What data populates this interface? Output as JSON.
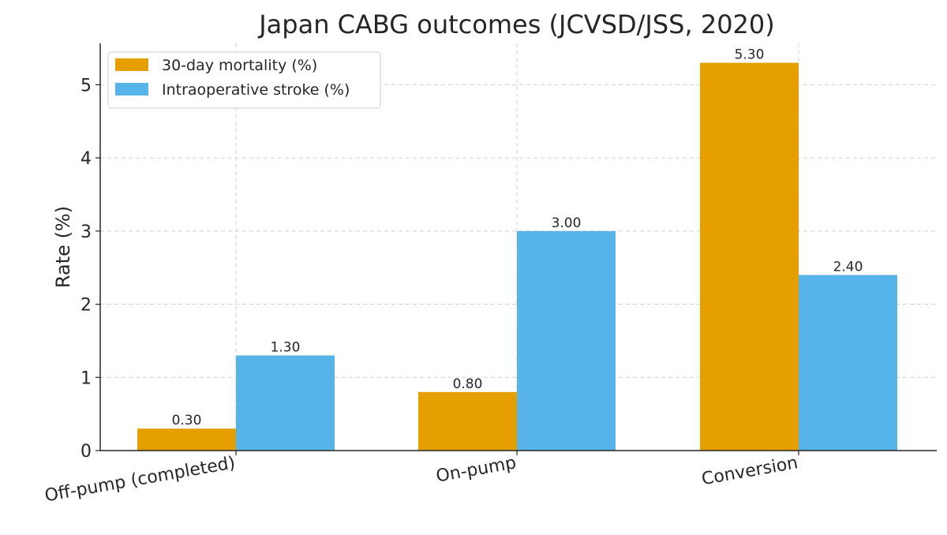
{
  "chart_data": {
    "type": "bar",
    "title": "Japan CABG outcomes (JCVSD/JSS, 2020)",
    "xlabel": "",
    "ylabel": "Rate (%)",
    "ylim": [
      0,
      5.565
    ],
    "yticks": [
      0,
      1,
      2,
      3,
      4,
      5
    ],
    "categories": [
      "Off-pump (completed)",
      "On-pump",
      "Conversion"
    ],
    "series": [
      {
        "name": "30-day mortality (%)",
        "color": "#E69F00",
        "values": [
          0.3,
          0.8,
          5.3
        ],
        "labels": [
          "0.30",
          "0.80",
          "5.30"
        ]
      },
      {
        "name": "Intraoperative stroke (%)",
        "color": "#56B4E9",
        "values": [
          1.3,
          3.0,
          2.4
        ],
        "labels": [
          "1.30",
          "3.00",
          "2.40"
        ]
      }
    ],
    "grid": true,
    "legend_position": "top-left"
  }
}
